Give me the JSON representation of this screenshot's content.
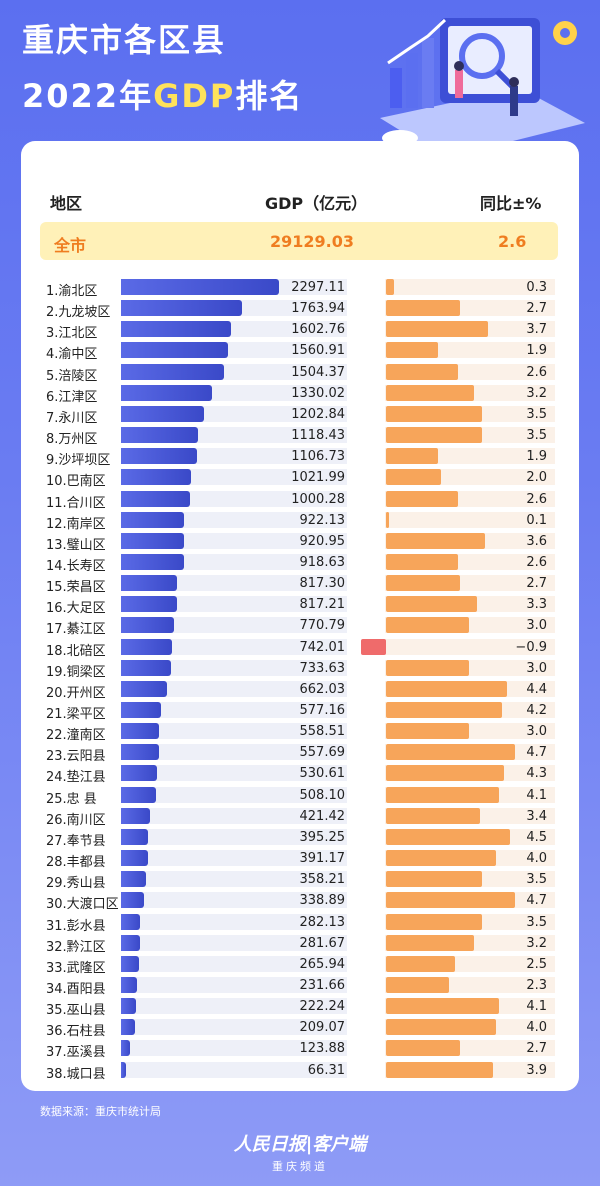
{
  "header": {
    "title_line1": "重庆市各区县",
    "title_line2_prefix": "2022年",
    "title_line2_highlight": "GDP",
    "title_line2_suffix": "排名"
  },
  "columns": {
    "region": "地区",
    "gdp": "GDP（亿元）",
    "growth": "同比±%"
  },
  "total": {
    "label": "全市",
    "gdp": "29129.03",
    "growth": "2.6"
  },
  "footer": {
    "source": "数据来源：重庆市统计局",
    "brand": "人民日报|客户端",
    "channel": "重庆频道"
  },
  "colors": {
    "gdp_bar": "#3a49c8",
    "growth_bar": "#f7a55a",
    "negative_bar": "#ef6b6b",
    "total_text": "#ef7d20"
  },
  "chart_data": {
    "type": "bar",
    "categories": [
      "1.渝北区",
      "2.九龙坡区",
      "3.江北区",
      "4.渝中区",
      "5.涪陵区",
      "6.江津区",
      "7.永川区",
      "8.万州区",
      "9.沙坪坝区",
      "10.巴南区",
      "11.合川区",
      "12.南岸区",
      "13.璧山区",
      "14.长寿区",
      "15.荣昌区",
      "16.大足区",
      "17.綦江区",
      "18.北碚区",
      "19.铜梁区",
      "20.开州区",
      "21.梁平区",
      "22.潼南区",
      "23.云阳县",
      "24.垫江县",
      "25.忠 县",
      "26.南川区",
      "27.奉节县",
      "28.丰都县",
      "29.秀山县",
      "30.大渡口区",
      "31.彭水县",
      "32.黔江区",
      "33.武隆区",
      "34.酉阳县",
      "35.巫山县",
      "36.石柱县",
      "37.巫溪县",
      "38.城口县"
    ],
    "series": [
      {
        "values": [
          "2297.11",
          "1763.94",
          "1602.76",
          "1560.91",
          "1504.37",
          "1330.02",
          "1202.84",
          "1118.43",
          "1106.73",
          "1021.99",
          "1000.28",
          "922.13",
          "920.95",
          "918.63",
          "817.30",
          "817.21",
          "770.79",
          "742.01",
          "733.63",
          "662.03",
          "577.16",
          "558.51",
          "557.69",
          "530.61",
          "508.10",
          "421.42",
          "395.25",
          "391.17",
          "358.21",
          "338.89",
          "282.13",
          "281.67",
          "265.94",
          "231.66",
          "222.24",
          "209.07",
          "123.88",
          "66.31"
        ]
      },
      {
        "values": [
          "0.3",
          "2.7",
          "3.7",
          "1.9",
          "2.6",
          "3.2",
          "3.5",
          "3.5",
          "1.9",
          "2.0",
          "2.6",
          "0.1",
          "3.6",
          "2.6",
          "2.7",
          "3.3",
          "3.0",
          "−0.9",
          "3.0",
          "4.4",
          "4.2",
          "3.0",
          "4.7",
          "4.3",
          "4.1",
          "3.4",
          "4.5",
          "4.0",
          "3.5",
          "4.7",
          "3.5",
          "3.2",
          "2.5",
          "2.3",
          "4.1",
          "4.0",
          "2.7",
          "3.9"
        ]
      }
    ]
  }
}
